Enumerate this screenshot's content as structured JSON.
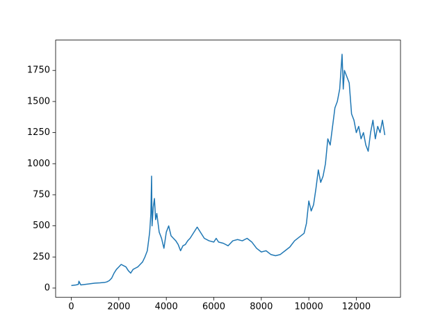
{
  "chart_data": {
    "type": "line",
    "x": [
      0,
      200,
      300,
      320,
      400,
      600,
      800,
      1000,
      1200,
      1400,
      1500,
      1600,
      1700,
      1800,
      1900,
      2000,
      2100,
      2200,
      2300,
      2400,
      2500,
      2600,
      2700,
      2800,
      2900,
      3000,
      3100,
      3200,
      3300,
      3350,
      3380,
      3400,
      3450,
      3500,
      3550,
      3600,
      3700,
      3800,
      3900,
      4000,
      4100,
      4200,
      4300,
      4400,
      4500,
      4600,
      4700,
      4800,
      4900,
      5000,
      5100,
      5200,
      5300,
      5400,
      5500,
      5600,
      5800,
      6000,
      6100,
      6200,
      6400,
      6600,
      6800,
      7000,
      7200,
      7400,
      7600,
      7800,
      8000,
      8200,
      8400,
      8600,
      8800,
      9000,
      9200,
      9400,
      9600,
      9800,
      9900,
      10000,
      10100,
      10200,
      10300,
      10400,
      10500,
      10600,
      10700,
      10800,
      10900,
      11000,
      11100,
      11200,
      11300,
      11400,
      11450,
      11500,
      11600,
      11700,
      11800,
      11900,
      12000,
      12100,
      12200,
      12300,
      12400,
      12500,
      12600,
      12700,
      12800,
      12900,
      13000,
      13100,
      13200
    ],
    "series": [
      {
        "color": "#1f77b4",
        "values": [
          20,
          25,
          30,
          55,
          25,
          30,
          35,
          40,
          42,
          45,
          50,
          60,
          80,
          120,
          150,
          170,
          190,
          180,
          170,
          140,
          120,
          150,
          160,
          170,
          190,
          210,
          250,
          300,
          450,
          600,
          900,
          500,
          650,
          720,
          550,
          600,
          450,
          400,
          320,
          450,
          500,
          420,
          400,
          380,
          350,
          300,
          340,
          350,
          380,
          400,
          430,
          460,
          490,
          460,
          430,
          400,
          380,
          370,
          400,
          370,
          360,
          340,
          380,
          390,
          380,
          400,
          370,
          320,
          290,
          300,
          270,
          260,
          270,
          300,
          330,
          380,
          410,
          440,
          520,
          700,
          620,
          670,
          800,
          950,
          850,
          900,
          1000,
          1200,
          1150,
          1300,
          1450,
          1500,
          1600,
          1880,
          1600,
          1750,
          1700,
          1650,
          1400,
          1350,
          1250,
          1300,
          1200,
          1250,
          1150,
          1100,
          1250,
          1350,
          1200,
          1300,
          1250,
          1350,
          1230
        ]
      }
    ],
    "xlim": [
      -660,
      13860
    ],
    "ylim": [
      -74,
      1994
    ],
    "xticks": [
      0,
      2000,
      4000,
      6000,
      8000,
      10000,
      12000
    ],
    "yticks": [
      0,
      250,
      500,
      750,
      1000,
      1250,
      1500,
      1750
    ]
  }
}
